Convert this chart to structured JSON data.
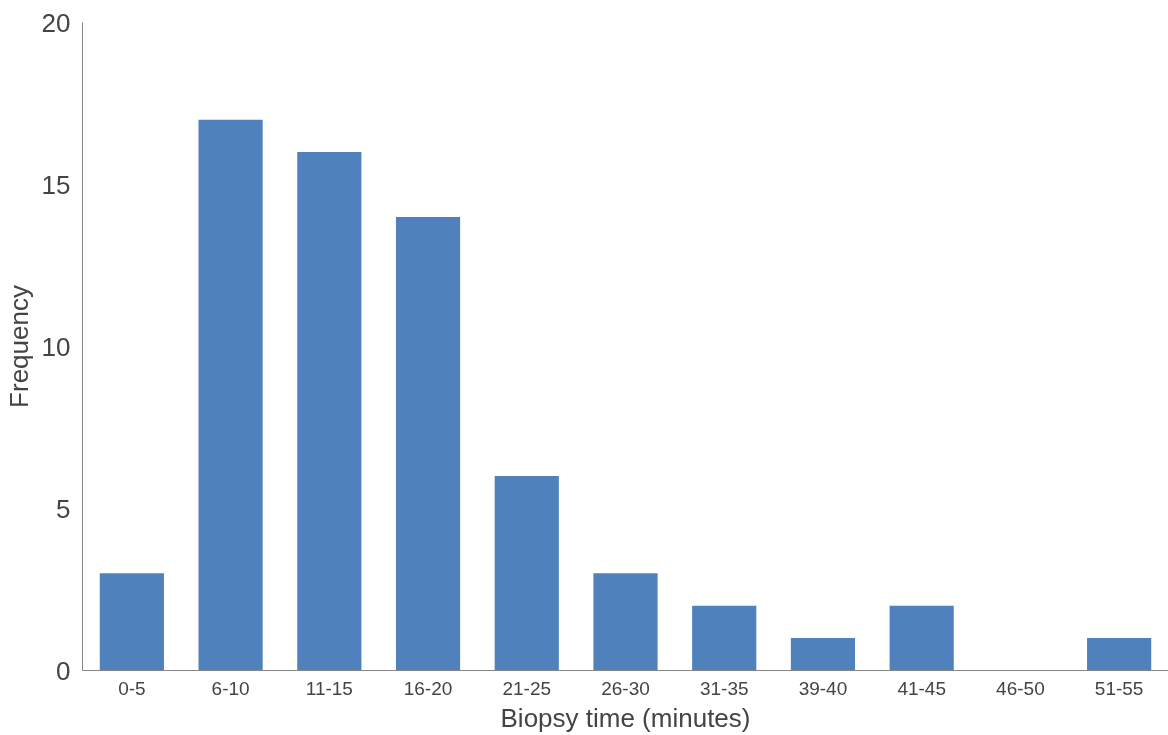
{
  "chart_data": {
    "type": "bar",
    "xlabel": "Biopsy time (minutes)",
    "ylabel": "Frequency",
    "categories": [
      "0-5",
      "6-10",
      "11-15",
      "16-20",
      "21-25",
      "26-30",
      "31-35",
      "39-40",
      "41-45",
      "46-50",
      "51-55"
    ],
    "values": [
      3,
      17,
      16,
      14,
      6,
      3,
      2,
      1,
      2,
      0,
      1
    ],
    "color": "#4f81bd",
    "ylim": [
      0,
      20
    ],
    "yticks": [
      0,
      5,
      10,
      15,
      20
    ],
    "grid": false
  }
}
